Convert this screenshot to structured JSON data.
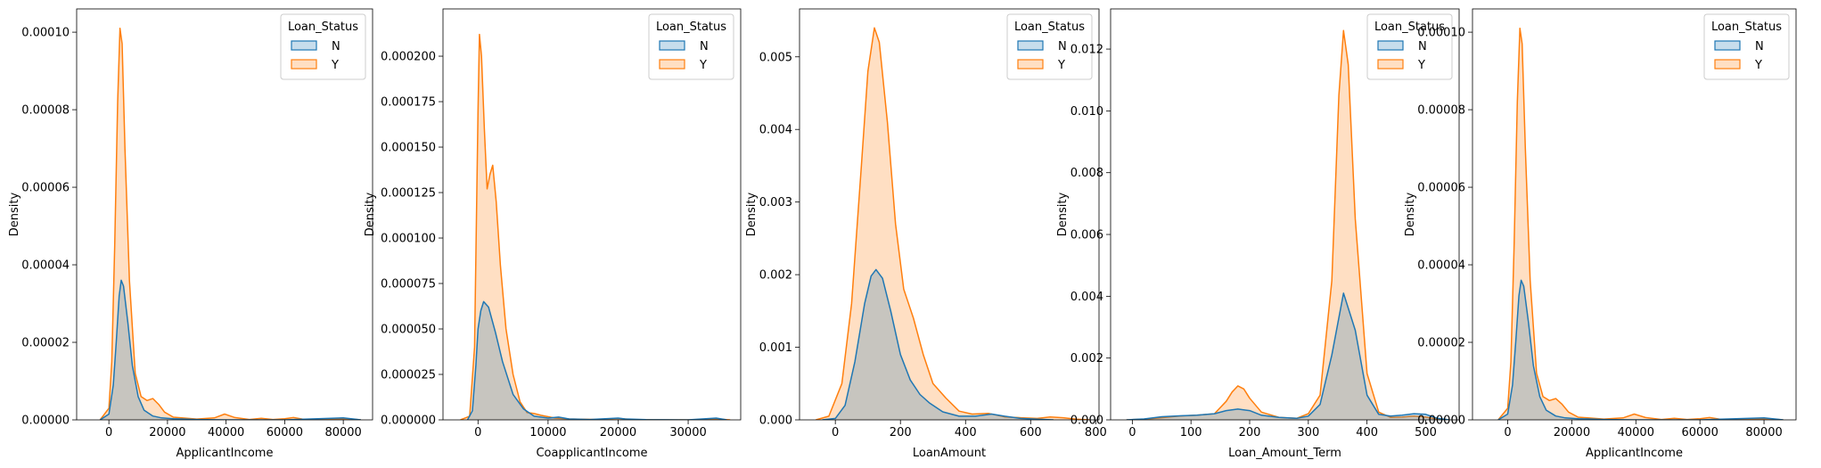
{
  "chart_data": [
    {
      "type": "area",
      "xlabel": "ApplicantIncome",
      "ylabel": "Density",
      "xlim": [
        -11000,
        90000
      ],
      "ylim": [
        0,
        0.000106
      ],
      "xticks": [
        0,
        20000,
        40000,
        60000,
        80000
      ],
      "xtick_labels": [
        "0",
        "20000",
        "40000",
        "60000",
        "80000"
      ],
      "yticks": [
        0,
        2e-05,
        4e-05,
        6e-05,
        8e-05,
        0.0001
      ],
      "ytick_labels": [
        "0.00000",
        "0.00002",
        "0.00004",
        "0.00006",
        "0.00008",
        "0.00010"
      ],
      "legend": {
        "title": "Loan_Status",
        "position": "top-right"
      },
      "series": [
        {
          "name": "N",
          "x": [
            -3000,
            0,
            1500,
            2500,
            3500,
            4200,
            5000,
            6500,
            8000,
            10000,
            12000,
            15000,
            18000,
            22000,
            30000,
            40000,
            60000,
            80000,
            86000
          ],
          "y": [
            0,
            1.5e-06,
            9e-06,
            2e-05,
            3.2e-05,
            3.6e-05,
            3.45e-05,
            2.5e-05,
            1.4e-05,
            6e-06,
            2.5e-06,
            1e-06,
            5e-07,
            3e-07,
            1e-07,
            0,
            0,
            5e-07,
            0
          ]
        },
        {
          "name": "Y",
          "x": [
            -3000,
            0,
            1000,
            2000,
            3000,
            3800,
            4500,
            5500,
            7000,
            9000,
            11000,
            13000,
            15000,
            17000,
            19000,
            22000,
            30000,
            36000,
            39500,
            43000,
            48000,
            52000,
            56000,
            60000,
            63000,
            66000,
            72000,
            81000,
            86000
          ],
          "y": [
            0,
            3e-06,
            1.5e-05,
            4.5e-05,
            8.2e-05,
            0.000101,
            9.7e-05,
            7e-05,
            3.6e-05,
            1.2e-05,
            6e-06,
            5e-06,
            5.5e-06,
            4e-06,
            2e-06,
            7e-07,
            2e-07,
            5e-07,
            1.5e-06,
            6e-07,
            1e-07,
            4e-07,
            1e-07,
            3e-07,
            6e-07,
            2e-07,
            1e-07,
            3e-07,
            0
          ]
        }
      ]
    },
    {
      "type": "area",
      "xlabel": "CoapplicantIncome",
      "ylabel": "Density",
      "xlim": [
        -5000,
        37500
      ],
      "ylim": [
        0,
        0.000226
      ],
      "xticks": [
        0,
        10000,
        20000,
        30000
      ],
      "xtick_labels": [
        "0",
        "10000",
        "20000",
        "30000"
      ],
      "yticks": [
        0,
        2.5e-05,
        5e-05,
        7.5e-05,
        0.0001,
        0.000125,
        0.00015,
        0.000175,
        0.0002
      ],
      "ytick_labels": [
        "0.000000",
        "0.000025",
        "0.000050",
        "0.000075",
        "0.000100",
        "0.000125",
        "0.000150",
        "0.000175",
        "0.000200"
      ],
      "legend": {
        "title": "Loan_Status",
        "position": "top-right"
      },
      "series": [
        {
          "name": "N",
          "x": [
            -1500,
            -800,
            -300,
            0,
            400,
            800,
            1500,
            2500,
            3500,
            5000,
            6500,
            8000,
            10000,
            11500,
            13000,
            16000,
            20000,
            21000,
            24000,
            30000,
            34000,
            35500
          ],
          "y": [
            0,
            5e-06,
            3e-05,
            5e-05,
            6e-05,
            6.5e-05,
            6.2e-05,
            4.8e-05,
            3.2e-05,
            1.4e-05,
            6e-06,
            2e-06,
            1e-06,
            1.5e-06,
            5e-07,
            2e-07,
            1e-06,
            5e-07,
            1e-07,
            0,
            1e-06,
            0
          ]
        },
        {
          "name": "Y",
          "x": [
            -2500,
            -1200,
            -500,
            0,
            200,
            500,
            900,
            1300,
            1700,
            2100,
            2600,
            3200,
            4000,
            5000,
            6000,
            7000,
            8000,
            9000,
            11000,
            13000,
            17000,
            20000,
            22000,
            30000,
            34000,
            36000
          ],
          "y": [
            0,
            2e-06,
            4e-05,
            0.00017,
            0.000212,
            0.0002,
            0.00016,
            0.000127,
            0.000135,
            0.00014,
            0.00012,
            8.5e-05,
            5e-05,
            2.5e-05,
            1e-05,
            4e-06,
            3.5e-06,
            2.5e-06,
            1e-06,
            5e-07,
            2e-07,
            8e-07,
            2e-07,
            0,
            5e-07,
            0
          ]
        }
      ]
    },
    {
      "type": "area",
      "xlabel": "LoanAmount",
      "ylabel": "Density",
      "xlim": [
        -110,
        810
      ],
      "ylim": [
        0,
        0.00566
      ],
      "xticks": [
        0,
        200,
        400,
        600,
        800
      ],
      "xtick_labels": [
        "0",
        "200",
        "400",
        "600",
        "800"
      ],
      "yticks": [
        0,
        0.001,
        0.002,
        0.003,
        0.004,
        0.005
      ],
      "ytick_labels": [
        "0.000",
        "0.001",
        "0.002",
        "0.003",
        "0.004",
        "0.005"
      ],
      "legend": {
        "title": "Loan_Status",
        "position": "top-right"
      },
      "series": [
        {
          "name": "N",
          "x": [
            -40,
            0,
            30,
            60,
            90,
            110,
            125,
            145,
            170,
            200,
            230,
            260,
            290,
            330,
            380,
            430,
            480,
            520,
            570,
            620,
            670
          ],
          "y": [
            0,
            2e-05,
            0.0002,
            0.0008,
            0.0016,
            0.00198,
            0.00207,
            0.00195,
            0.0015,
            0.0009,
            0.00055,
            0.00035,
            0.00023,
            0.00011,
            5e-05,
            5e-05,
            8e-05,
            5e-05,
            2e-05,
            1e-05,
            0
          ]
        },
        {
          "name": "Y",
          "x": [
            -60,
            -20,
            20,
            50,
            80,
            100,
            120,
            135,
            160,
            185,
            210,
            240,
            270,
            300,
            340,
            380,
            420,
            470,
            520,
            570,
            620,
            660,
            700,
            740,
            780
          ],
          "y": [
            0,
            5e-05,
            0.0005,
            0.0016,
            0.0035,
            0.0048,
            0.0054,
            0.0052,
            0.0041,
            0.0027,
            0.0018,
            0.0014,
            0.0009,
            0.0005,
            0.0003,
            0.00012,
            8e-05,
            9e-05,
            4e-05,
            3e-05,
            2e-05,
            4e-05,
            3e-05,
            1e-05,
            0
          ]
        }
      ]
    },
    {
      "type": "area",
      "xlabel": "Loan_Amount_Term",
      "ylabel": "Density",
      "xlim": [
        -37,
        557
      ],
      "ylim": [
        0,
        0.0133
      ],
      "xticks": [
        0,
        100,
        200,
        300,
        400,
        500
      ],
      "xtick_labels": [
        "0",
        "100",
        "200",
        "300",
        "400",
        "500"
      ],
      "yticks": [
        0,
        0.002,
        0.004,
        0.006,
        0.008,
        0.01,
        0.012
      ],
      "ytick_labels": [
        "0.000",
        "0.002",
        "0.004",
        "0.006",
        "0.008",
        "0.010",
        "0.012"
      ],
      "legend": {
        "title": "Loan_Status",
        "position": "top-right"
      },
      "series": [
        {
          "name": "N",
          "x": [
            -10,
            20,
            50,
            80,
            110,
            140,
            160,
            180,
            200,
            220,
            250,
            280,
            300,
            320,
            340,
            360,
            380,
            400,
            420,
            440,
            460,
            480,
            500,
            520,
            540
          ],
          "y": [
            0,
            3e-05,
            0.0001,
            0.00013,
            0.00015,
            0.0002,
            0.0003,
            0.00035,
            0.0003,
            0.00015,
            8e-05,
            5e-05,
            0.00012,
            0.0005,
            0.0021,
            0.0041,
            0.0029,
            0.0008,
            0.00018,
            0.00012,
            0.00015,
            0.0002,
            0.00018,
            5e-05,
            0
          ]
        },
        {
          "name": "Y",
          "x": [
            -10,
            20,
            50,
            80,
            110,
            140,
            160,
            170,
            180,
            190,
            200,
            220,
            250,
            280,
            300,
            320,
            340,
            352,
            360,
            368,
            380,
            400,
            420,
            440,
            460,
            480,
            500,
            520,
            540
          ],
          "y": [
            0,
            2e-05,
            7e-05,
            0.00012,
            0.00015,
            0.0002,
            0.0006,
            0.0009,
            0.0011,
            0.001,
            0.0007,
            0.00025,
            8e-05,
            5e-05,
            0.0002,
            0.0008,
            0.0045,
            0.0105,
            0.0126,
            0.0115,
            0.0065,
            0.0015,
            0.00025,
            8e-05,
            9e-05,
            0.00012,
            9e-05,
            3e-05,
            0
          ]
        }
      ]
    },
    {
      "type": "area",
      "xlabel": "ApplicantIncome",
      "ylabel": "Density",
      "xlim": [
        -11000,
        90000
      ],
      "ylim": [
        0,
        0.000106
      ],
      "xticks": [
        0,
        20000,
        40000,
        60000,
        80000
      ],
      "xtick_labels": [
        "0",
        "20000",
        "40000",
        "60000",
        "80000"
      ],
      "yticks": [
        0,
        2e-05,
        4e-05,
        6e-05,
        8e-05,
        0.0001
      ],
      "ytick_labels": [
        "0.00000",
        "0.00002",
        "0.00004",
        "0.00006",
        "0.00008",
        "0.00010"
      ],
      "legend": {
        "title": "Loan_Status",
        "position": "top-right"
      },
      "series": [
        {
          "name": "N",
          "x": [
            -3000,
            0,
            1500,
            2500,
            3500,
            4200,
            5000,
            6500,
            8000,
            10000,
            12000,
            15000,
            18000,
            22000,
            30000,
            40000,
            60000,
            80000,
            86000
          ],
          "y": [
            0,
            1.5e-06,
            9e-06,
            2e-05,
            3.2e-05,
            3.6e-05,
            3.45e-05,
            2.5e-05,
            1.4e-05,
            6e-06,
            2.5e-06,
            1e-06,
            5e-07,
            3e-07,
            1e-07,
            0,
            0,
            5e-07,
            0
          ]
        },
        {
          "name": "Y",
          "x": [
            -3000,
            0,
            1000,
            2000,
            3000,
            3800,
            4500,
            5500,
            7000,
            9000,
            11000,
            13000,
            15000,
            17000,
            19000,
            22000,
            30000,
            36000,
            39500,
            43000,
            48000,
            52000,
            56000,
            60000,
            63000,
            66000,
            72000,
            81000,
            86000
          ],
          "y": [
            0,
            3e-06,
            1.5e-05,
            4.5e-05,
            8.2e-05,
            0.000101,
            9.7e-05,
            7e-05,
            3.6e-05,
            1.2e-05,
            6e-06,
            5e-06,
            5.5e-06,
            4e-06,
            2e-06,
            7e-07,
            2e-07,
            5e-07,
            1.5e-06,
            6e-07,
            1e-07,
            4e-07,
            1e-07,
            3e-07,
            6e-07,
            2e-07,
            1e-07,
            3e-07,
            0
          ]
        }
      ]
    }
  ],
  "colors": {
    "N": "#1f77b4",
    "Y": "#ff7f0e",
    "N_fill": "#1f77b4",
    "Y_fill": "#ff7f0e"
  }
}
